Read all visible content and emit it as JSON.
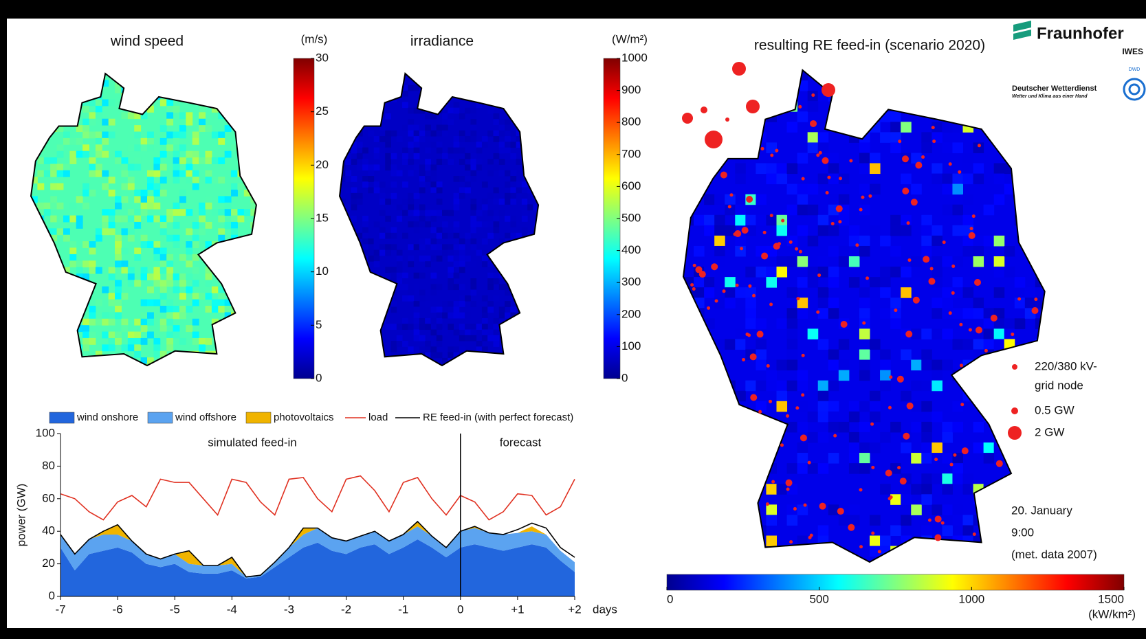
{
  "logos": {
    "fraunhofer": "Fraunhofer",
    "iwes": "IWES",
    "dwd": "Deutscher Wetterdienst",
    "dwd_slogan": "Wetter und Klima aus einer Hand",
    "dwd_mark": "DWD"
  },
  "chart_data": [
    {
      "type": "map",
      "title": "wind speed",
      "colorbar_label": "(m/s)",
      "clim": [
        0,
        30
      ],
      "cticks": [
        0,
        5,
        10,
        15,
        20,
        25,
        30
      ],
      "colormap": [
        "#00008f",
        "#0000ff",
        "#0080ff",
        "#00ffff",
        "#80ff80",
        "#ffff00",
        "#ff8000",
        "#ff0000",
        "#800000"
      ]
    },
    {
      "type": "map",
      "title": "irradiance",
      "colorbar_label": "(W/m²)",
      "clim": [
        0,
        1000
      ],
      "cticks": [
        0,
        100,
        200,
        300,
        400,
        500,
        600,
        700,
        800,
        900,
        1000
      ],
      "colormap": [
        "#00008f",
        "#0000ff",
        "#0080ff",
        "#00ffff",
        "#80ff80",
        "#ffff00",
        "#ff8000",
        "#ff0000",
        "#800000"
      ]
    },
    {
      "type": "map",
      "title": "resulting RE feed-in (scenario 2020)",
      "colorbar_label": "(kW/km²)",
      "clim": [
        0,
        1500
      ],
      "cticks": [
        0,
        500,
        1000,
        1500
      ],
      "colormap": [
        "#00008f",
        "#0000ff",
        "#0080ff",
        "#00ffff",
        "#80ff80",
        "#ffff00",
        "#ff8000",
        "#ff0000",
        "#800000"
      ],
      "legend": [
        {
          "label": [
            "220/380 kV-",
            "grid node"
          ]
        },
        {
          "label": [
            "0.5 GW"
          ]
        },
        {
          "label": [
            "2 GW"
          ]
        }
      ],
      "annotations": [
        "20. January",
        "9:00",
        "(met. data 2007)"
      ]
    },
    {
      "type": "area",
      "ylabel": "power (GW)",
      "xlabel": "days",
      "annotations": [
        "simulated feed-in",
        "forecast"
      ],
      "xlim": [
        -7,
        2
      ],
      "ylim": [
        0,
        100
      ],
      "xticks": [
        -7,
        -6,
        -5,
        -4,
        -3,
        -2,
        -1,
        0,
        {
          "value": 1,
          "label": "+1"
        },
        {
          "value": 2,
          "label": "+2"
        }
      ],
      "yticks": [
        0,
        20,
        40,
        60,
        80,
        100
      ],
      "x": [
        -7,
        -6.75,
        -6.5,
        -6.25,
        -6,
        -5.75,
        -5.5,
        -5.25,
        -5,
        -4.75,
        -4.5,
        -4.25,
        -4,
        -3.75,
        -3.5,
        -3.25,
        -3,
        -2.75,
        -2.5,
        -2.25,
        -2,
        -1.75,
        -1.5,
        -1.25,
        -1,
        -0.75,
        -0.5,
        -0.25,
        0,
        0.25,
        0.5,
        0.75,
        1,
        1.25,
        1.5,
        1.75,
        2
      ],
      "series": [
        {
          "name": "wind onshore",
          "style": "area",
          "color": "#2266dd",
          "values": [
            30,
            16,
            26,
            28,
            30,
            27,
            20,
            18,
            20,
            15,
            14,
            14,
            16,
            11,
            12,
            18,
            24,
            30,
            33,
            28,
            26,
            30,
            32,
            26,
            30,
            35,
            30,
            24,
            30,
            32,
            30,
            28,
            30,
            32,
            30,
            22,
            15
          ]
        },
        {
          "name": "wind offshore",
          "style": "area",
          "color": "#5ba3f0",
          "values": [
            8,
            10,
            9,
            10,
            8,
            7,
            6,
            5,
            6,
            5,
            5,
            5,
            4,
            1,
            1,
            3,
            6,
            8,
            9,
            8,
            8,
            7,
            8,
            8,
            8,
            8,
            7,
            6,
            10,
            10,
            9,
            10,
            9,
            8,
            8,
            6,
            6
          ]
        },
        {
          "name": "photovoltaics",
          "style": "area",
          "color": "#f0b400",
          "values": [
            0,
            0,
            0,
            2,
            6,
            0,
            0,
            0,
            0,
            8,
            0,
            0,
            4,
            0,
            0,
            0,
            0,
            4,
            0,
            0,
            0,
            0,
            0,
            0,
            0,
            3,
            0,
            0,
            0,
            1,
            0,
            0,
            0,
            3,
            0,
            0,
            0
          ]
        },
        {
          "name": "load",
          "style": "line",
          "color": "#e03020",
          "values": [
            63,
            60,
            52,
            47,
            58,
            62,
            55,
            72,
            70,
            70,
            60,
            50,
            72,
            70,
            58,
            50,
            72,
            73,
            60,
            52,
            72,
            74,
            65,
            52,
            70,
            73,
            60,
            50,
            62,
            58,
            47,
            52,
            63,
            62,
            50,
            55,
            72
          ]
        },
        {
          "name": "RE feed-in (with perfect forecast)",
          "style": "line",
          "color": "#000000",
          "values": [
            38,
            26,
            35,
            40,
            44,
            34,
            26,
            23,
            26,
            28,
            19,
            19,
            24,
            12,
            13,
            21,
            30,
            42,
            42,
            36,
            34,
            37,
            40,
            34,
            38,
            46,
            37,
            30,
            40,
            43,
            39,
            38,
            41,
            45,
            42,
            30,
            24
          ]
        }
      ]
    }
  ]
}
